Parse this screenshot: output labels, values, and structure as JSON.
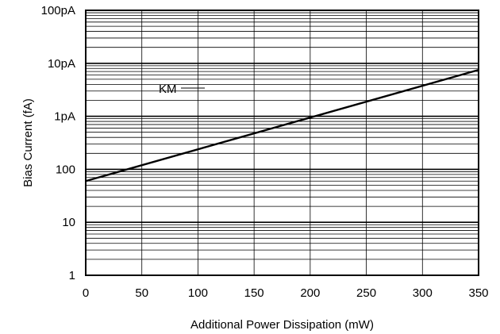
{
  "chart_data": {
    "type": "line",
    "title": "",
    "xlabel": "Additional Power Dissipation (mW)",
    "ylabel": "Bias Current (fA)",
    "x_scale": "linear",
    "y_scale": "log",
    "xlim": [
      0,
      350
    ],
    "ylim": [
      1,
      100000
    ],
    "x_ticks": [
      0,
      50,
      100,
      150,
      200,
      250,
      300,
      350
    ],
    "x_tick_labels": [
      "0",
      "50",
      "100",
      "150",
      "200",
      "250",
      "300",
      "350"
    ],
    "y_ticks": [
      1,
      10,
      100,
      1000,
      10000,
      100000
    ],
    "y_tick_labels": [
      "1",
      "10",
      "100",
      "1pA",
      "10pA",
      "100pA"
    ],
    "grid": true,
    "series": [
      {
        "name": "KM",
        "x": [
          0,
          350
        ],
        "y": [
          60,
          7500
        ]
      }
    ],
    "colors": {
      "line": "#000000",
      "grid": "#000000"
    }
  }
}
